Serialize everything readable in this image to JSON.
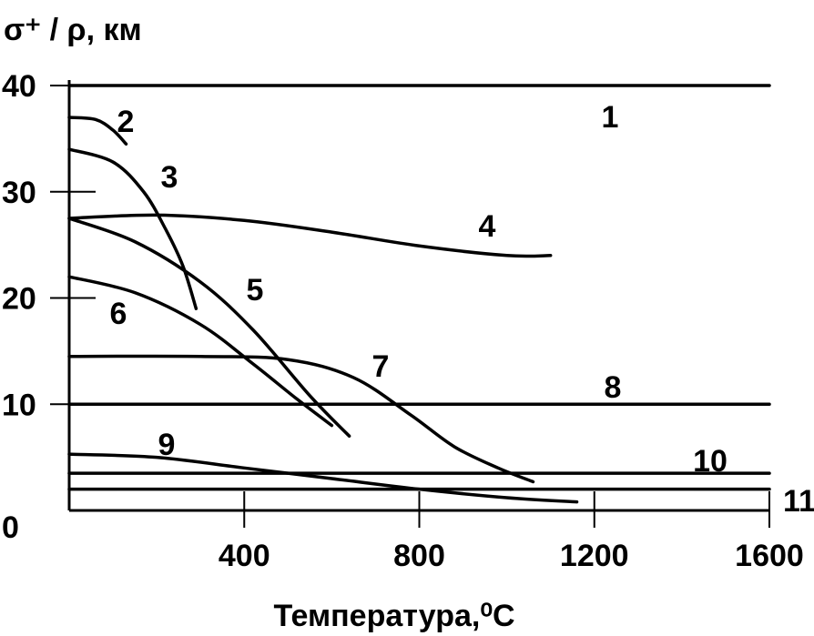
{
  "chart_data": {
    "type": "line",
    "ylabel": "σ⁺ / ρ, км",
    "xlabel": "Температура,⁰С",
    "xlim": [
      0,
      1600
    ],
    "ylim": [
      0,
      40
    ],
    "x_ticks": [
      400,
      800,
      1200,
      1600
    ],
    "x_tick_labels": [
      "400",
      "800",
      "1200",
      "1600"
    ],
    "y_ticks": [
      0,
      10,
      20,
      30,
      40
    ],
    "y_tick_labels": [
      "0",
      "10",
      "20",
      "30",
      "40"
    ],
    "grid": false,
    "series": [
      {
        "name": "1",
        "points": [
          [
            0,
            40
          ],
          [
            1600,
            40
          ]
        ]
      },
      {
        "name": "2",
        "points": [
          [
            0,
            37
          ],
          [
            60,
            36.8
          ],
          [
            100,
            35.8
          ],
          [
            130,
            34.5
          ]
        ]
      },
      {
        "name": "3",
        "points": [
          [
            0,
            34
          ],
          [
            100,
            32.8
          ],
          [
            170,
            30
          ],
          [
            220,
            26.5
          ],
          [
            260,
            23
          ],
          [
            290,
            19
          ]
        ]
      },
      {
        "name": "4",
        "points": [
          [
            0,
            27.5
          ],
          [
            200,
            27.8
          ],
          [
            400,
            27.3
          ],
          [
            600,
            26.2
          ],
          [
            800,
            24.9
          ],
          [
            1000,
            24
          ],
          [
            1100,
            24
          ]
        ]
      },
      {
        "name": "5",
        "points": [
          [
            0,
            27.5
          ],
          [
            150,
            25.3
          ],
          [
            300,
            21.5
          ],
          [
            420,
            17
          ],
          [
            550,
            10.8
          ],
          [
            640,
            7
          ]
        ]
      },
      {
        "name": "6",
        "points": [
          [
            0,
            22
          ],
          [
            150,
            20.5
          ],
          [
            300,
            17.5
          ],
          [
            420,
            13.8
          ],
          [
            520,
            10.5
          ],
          [
            600,
            8
          ]
        ]
      },
      {
        "name": "7",
        "points": [
          [
            0,
            14.5
          ],
          [
            300,
            14.5
          ],
          [
            500,
            14.2
          ],
          [
            650,
            12.5
          ],
          [
            780,
            9
          ],
          [
            880,
            6
          ],
          [
            980,
            4
          ],
          [
            1060,
            2.7
          ]
        ]
      },
      {
        "name": "8",
        "points": [
          [
            0,
            10
          ],
          [
            1600,
            10
          ]
        ]
      },
      {
        "name": "9",
        "points": [
          [
            0,
            5.3
          ],
          [
            200,
            5
          ],
          [
            400,
            4
          ],
          [
            600,
            3
          ],
          [
            800,
            2
          ],
          [
            1000,
            1.2
          ],
          [
            1160,
            0.8
          ]
        ]
      },
      {
        "name": "10",
        "points": [
          [
            0,
            3.5
          ],
          [
            1600,
            3.5
          ]
        ]
      },
      {
        "name": "11",
        "points": [
          [
            0,
            2
          ],
          [
            1600,
            2
          ]
        ]
      }
    ]
  }
}
